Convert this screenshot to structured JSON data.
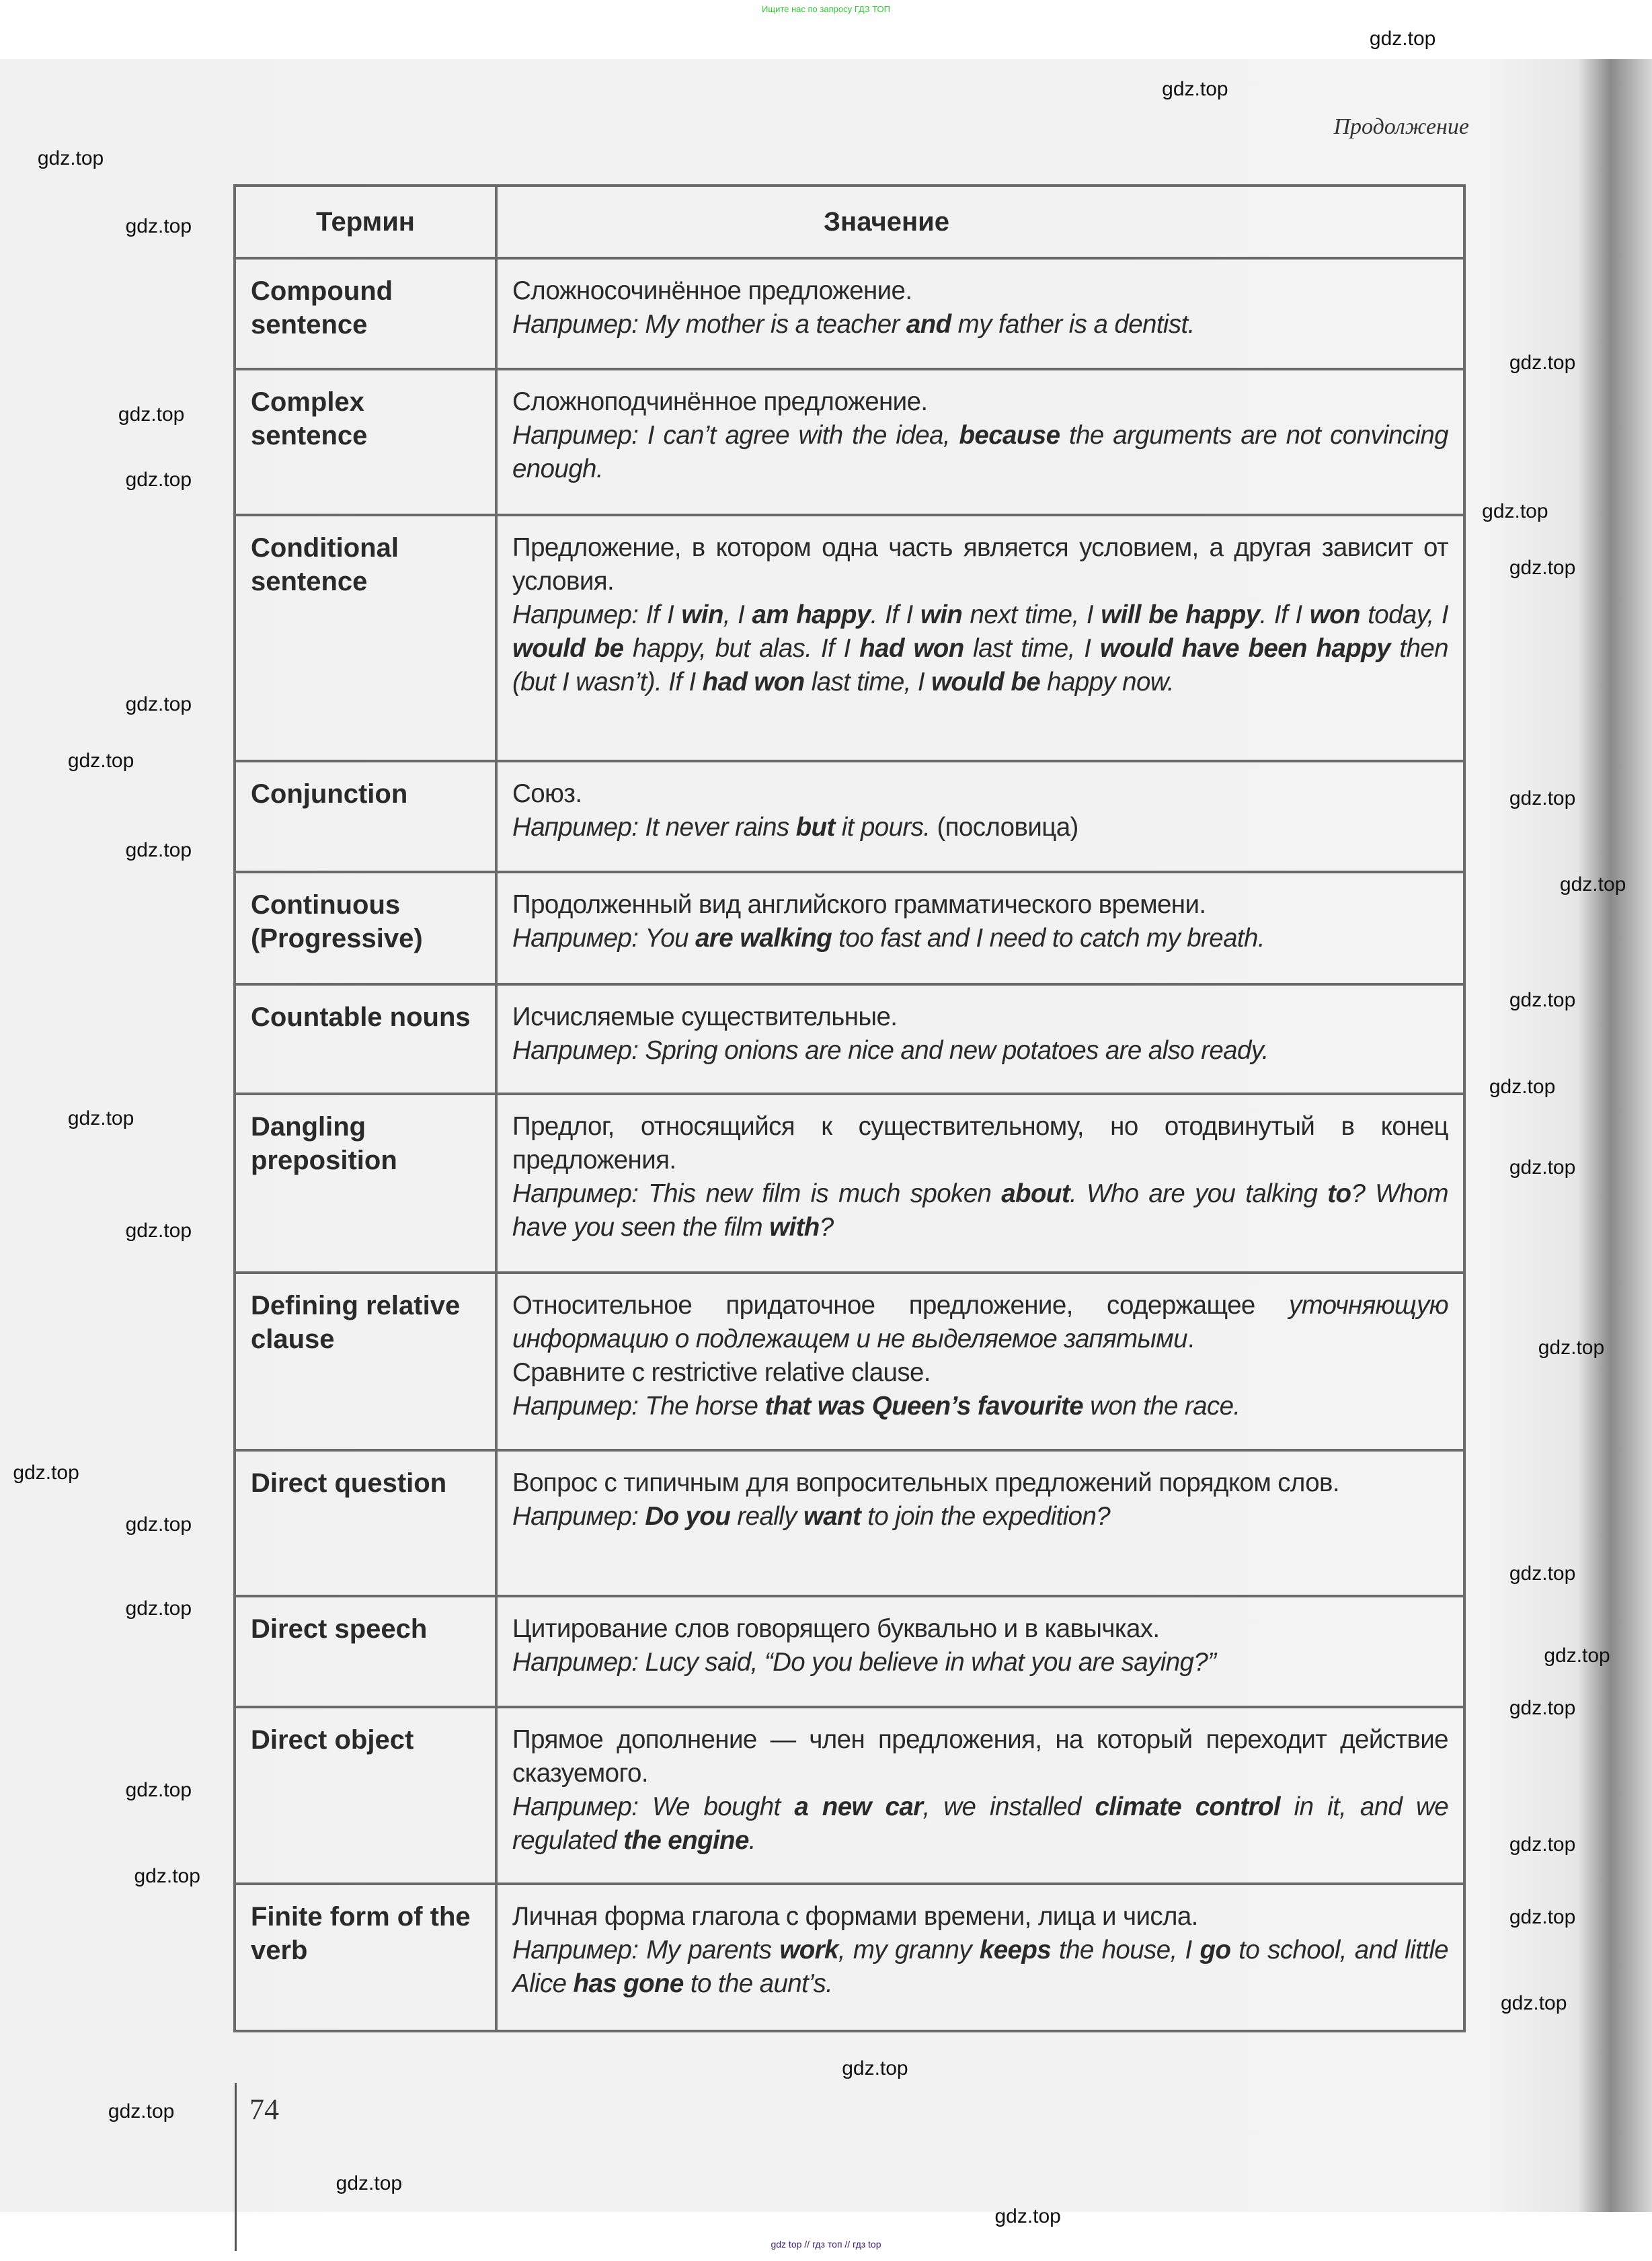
{
  "top_note": "Ищите нас по запросу ГДЗ ТОП",
  "bottom_note": "gdz top // гдз топ // гдз top",
  "continuation_label": "Продолжение",
  "watermark": "gdz.top",
  "page_number": "74",
  "table": {
    "headers": [
      "Термин",
      "Значение"
    ],
    "rows": [
      {
        "term": "Compound sentence",
        "paras": [
          [
            [
              "n",
              "Сложносочинённое предложение."
            ]
          ],
          [
            [
              "i",
              "Например: My mother is a teacher "
            ],
            [
              "bi",
              "and"
            ],
            [
              "i",
              " my father is a dentist."
            ]
          ]
        ]
      },
      {
        "term": "Complex sentence",
        "paras": [
          [
            [
              "n",
              "Сложноподчинённое предложение."
            ]
          ],
          [
            [
              "i",
              "Например: I can’t agree with the idea, "
            ],
            [
              "bi",
              "because"
            ],
            [
              "i",
              " the arguments are not convincing enough."
            ]
          ]
        ]
      },
      {
        "term": "Conditional sentence",
        "paras": [
          [
            [
              "n",
              "Предложение, в котором одна часть является условием, а другая зависит от условия."
            ]
          ],
          [
            [
              "i",
              "Например: If I "
            ],
            [
              "bi",
              "win"
            ],
            [
              "i",
              ", I "
            ],
            [
              "bi",
              "am happy"
            ],
            [
              "i",
              ". If I "
            ],
            [
              "bi",
              "win"
            ],
            [
              "i",
              " next time, I "
            ],
            [
              "bi",
              "will be happy"
            ],
            [
              "i",
              ". If I "
            ],
            [
              "bi",
              "won"
            ],
            [
              "i",
              " today, I "
            ],
            [
              "bi",
              "would be"
            ],
            [
              "i",
              " happy, but alas. If I "
            ],
            [
              "bi",
              "had won"
            ],
            [
              "i",
              " last time, I "
            ],
            [
              "bi",
              "would have been happy"
            ],
            [
              "i",
              " then (but I wasn’t). If I "
            ],
            [
              "bi",
              "had won"
            ],
            [
              "i",
              " last time, I "
            ],
            [
              "bi",
              "would be"
            ],
            [
              "i",
              " happy now."
            ]
          ]
        ]
      },
      {
        "term": "Conjunction",
        "paras": [
          [
            [
              "n",
              "Союз."
            ]
          ],
          [
            [
              "i",
              "Например: It never rains "
            ],
            [
              "bi",
              "but"
            ],
            [
              "i",
              " it pours."
            ],
            [
              "n",
              " (пословица)"
            ]
          ]
        ]
      },
      {
        "term": "Continuous (Progressive)",
        "paras": [
          [
            [
              "n",
              "Продолженный вид английского грамматического времени."
            ]
          ],
          [
            [
              "i",
              "Например: You "
            ],
            [
              "bi",
              "are walking"
            ],
            [
              "i",
              " too fast and I need to catch my breath."
            ]
          ]
        ]
      },
      {
        "term": "Countable nouns",
        "paras": [
          [
            [
              "n",
              "Исчисляемые существительные."
            ]
          ],
          [
            [
              "i",
              "Например: Spring onions are nice and new potatoes are also ready."
            ]
          ]
        ]
      },
      {
        "term": "Dangling preposition",
        "paras": [
          [
            [
              "n",
              "Предлог, относящийся к существительному, но отодвинутый в конец предложения."
            ]
          ],
          [
            [
              "i",
              "Например: This new film is much spoken "
            ],
            [
              "bi",
              "about"
            ],
            [
              "i",
              ". Who are you talking "
            ],
            [
              "bi",
              "to"
            ],
            [
              "i",
              "? Whom have you seen the film "
            ],
            [
              "bi",
              "with"
            ],
            [
              "i",
              "?"
            ]
          ]
        ]
      },
      {
        "term": "Defining relative clause",
        "paras": [
          [
            [
              "n",
              "Относительное придаточное предложение, содержащее "
            ],
            [
              "i",
              "уточняющую информацию о подлежащем и не выделяемое запятыми"
            ],
            [
              "n",
              "."
            ]
          ],
          [
            [
              "n",
              "Сравните с restrictive relative clause."
            ]
          ],
          [
            [
              "i",
              "Например: The horse "
            ],
            [
              "bi",
              "that was Queen’s favourite"
            ],
            [
              "i",
              " won the race."
            ]
          ]
        ]
      },
      {
        "term": "Direct question",
        "paras": [
          [
            [
              "n",
              "Вопрос с типичным для вопросительных предложений порядком слов."
            ]
          ],
          [
            [
              "i",
              "Например: "
            ],
            [
              "bi",
              "Do you"
            ],
            [
              "i",
              " really "
            ],
            [
              "bi",
              "want"
            ],
            [
              "i",
              " to join the expedition?"
            ]
          ]
        ]
      },
      {
        "term": "Direct speech",
        "paras": [
          [
            [
              "n",
              "Цитирование слов говорящего буквально и в кавычках."
            ]
          ],
          [
            [
              "i",
              "Например: Lucy said, “Do you believe in what you are saying?”"
            ]
          ]
        ]
      },
      {
        "term": "Direct object",
        "paras": [
          [
            [
              "n",
              "Прямое дополнение — член предложения, на который переходит действие сказуемого."
            ]
          ],
          [
            [
              "i",
              "Например: We bought "
            ],
            [
              "bi",
              "a new car"
            ],
            [
              "i",
              ", we installed "
            ],
            [
              "bi",
              "climate control"
            ],
            [
              "i",
              " in it, and we regulated "
            ],
            [
              "bi",
              "the engine"
            ],
            [
              "i",
              "."
            ]
          ]
        ]
      },
      {
        "term": "Finite form of the verb",
        "paras": [
          [
            [
              "n",
              "Личная форма глагола с формами времени, лица и числа."
            ]
          ],
          [
            [
              "i",
              "Например: My parents "
            ],
            [
              "bi",
              "work"
            ],
            [
              "i",
              ", my granny "
            ],
            [
              "bi",
              "keeps"
            ],
            [
              "i",
              " the house, I "
            ],
            [
              "bi",
              "go"
            ],
            [
              "i",
              " to school, and little Alice "
            ],
            [
              "bi",
              "has gone"
            ],
            [
              "i",
              " to the aunt’s."
            ]
          ]
        ]
      }
    ]
  }
}
